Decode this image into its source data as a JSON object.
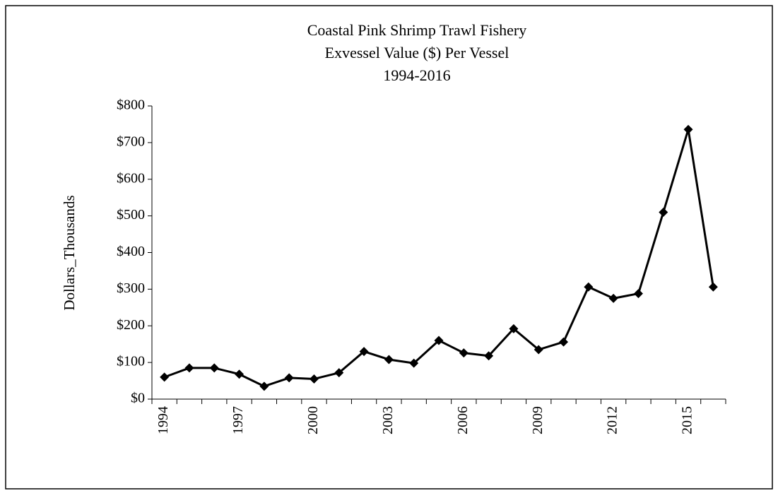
{
  "chart_data": {
    "type": "line",
    "title": [
      "Coastal Pink Shrimp Trawl Fishery",
      "Exvessel Value ($) Per Vessel",
      "1994-2016"
    ],
    "y_label": "Dollars_Thousands",
    "categories": [
      "1994",
      null,
      null,
      "1997",
      null,
      null,
      "2000",
      null,
      null,
      "2003",
      null,
      null,
      "2006",
      null,
      null,
      "2009",
      null,
      null,
      "2012",
      null,
      null,
      "2015",
      null
    ],
    "values": [
      60,
      85,
      85,
      68,
      35,
      58,
      55,
      72,
      130,
      108,
      98,
      160,
      126,
      118,
      192,
      135,
      156,
      306,
      275,
      288,
      510,
      736,
      306
    ],
    "color": "#000000",
    "ylim": [
      0,
      800
    ],
    "yticks": [
      {
        "value": 0,
        "label": "$0"
      },
      {
        "value": 100,
        "label": "$100"
      },
      {
        "value": 200,
        "label": "$200"
      },
      {
        "value": 300,
        "label": "$300"
      },
      {
        "value": 400,
        "label": "$400"
      },
      {
        "value": 500,
        "label": "$500"
      },
      {
        "value": 600,
        "label": "$600"
      },
      {
        "value": 700,
        "label": "$700"
      },
      {
        "value": 800,
        "label": "$800"
      }
    ],
    "grid": false
  }
}
